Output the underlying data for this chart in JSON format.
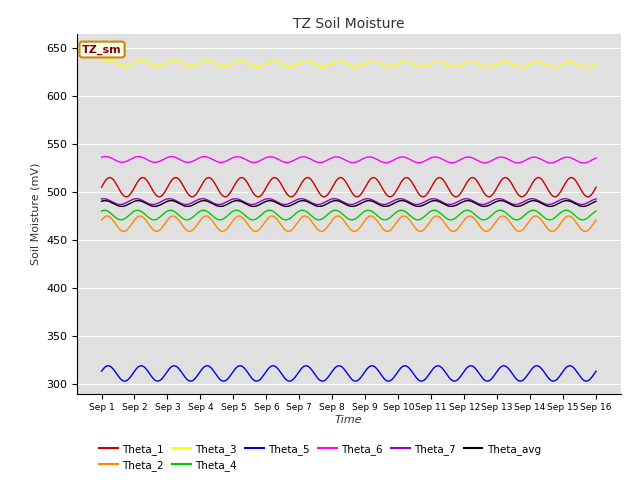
{
  "title": "TZ Soil Moisture",
  "xlabel": "Time",
  "ylabel": "Soil Moisture (mV)",
  "ylim": [
    290,
    665
  ],
  "yticks": [
    300,
    350,
    400,
    450,
    500,
    550,
    600,
    650
  ],
  "background_color": "#e0e0e0",
  "n_points": 1440,
  "days": 15,
  "series": {
    "Theta_1": {
      "color": "#cc0000",
      "base": 505,
      "amp": 10,
      "freq": 15.0,
      "phase": 0.0,
      "trend": 0
    },
    "Theta_2": {
      "color": "#ff8800",
      "base": 467,
      "amp": 8,
      "freq": 15.0,
      "phase": 0.5,
      "trend": 0
    },
    "Theta_3": {
      "color": "#ffff00",
      "base": 634,
      "amp": 3,
      "freq": 15.0,
      "phase": 0.2,
      "trend": -0.1
    },
    "Theta_4": {
      "color": "#00cc00",
      "base": 476,
      "amp": 5,
      "freq": 15.0,
      "phase": 1.0,
      "trend": 0
    },
    "Theta_5": {
      "color": "#0000ee",
      "base": 311,
      "amp": 8,
      "freq": 15.0,
      "phase": 0.3,
      "trend": 0
    },
    "Theta_6": {
      "color": "#ff00ff",
      "base": 534,
      "amp": 3,
      "freq": 15.0,
      "phase": 0.8,
      "trend": -0.05
    },
    "Theta_7": {
      "color": "#9900cc",
      "base": 490,
      "amp": 3,
      "freq": 15.0,
      "phase": 1.2,
      "trend": 0
    },
    "Theta_avg": {
      "color": "#000000",
      "base": 488,
      "amp": 3,
      "freq": 15.0,
      "phase": 0.9,
      "trend": 0
    }
  },
  "legend_order": [
    "Theta_1",
    "Theta_2",
    "Theta_3",
    "Theta_4",
    "Theta_5",
    "Theta_6",
    "Theta_7",
    "Theta_avg"
  ],
  "legend_label": "TZ_sm",
  "legend_label_color": "#8b0000",
  "legend_box_facecolor": "#fffff0",
  "legend_box_edgecolor": "#cc8800",
  "xtick_labels": [
    "Sep 1",
    "Sep 2",
    "Sep 3",
    "Sep 4",
    "Sep 5",
    "Sep 6",
    "Sep 7",
    "Sep 8",
    "Sep 9",
    "Sep 10",
    "Sep 11",
    "Sep 12",
    "Sep 13",
    "Sep 14",
    "Sep 15",
    "Sep 16"
  ]
}
